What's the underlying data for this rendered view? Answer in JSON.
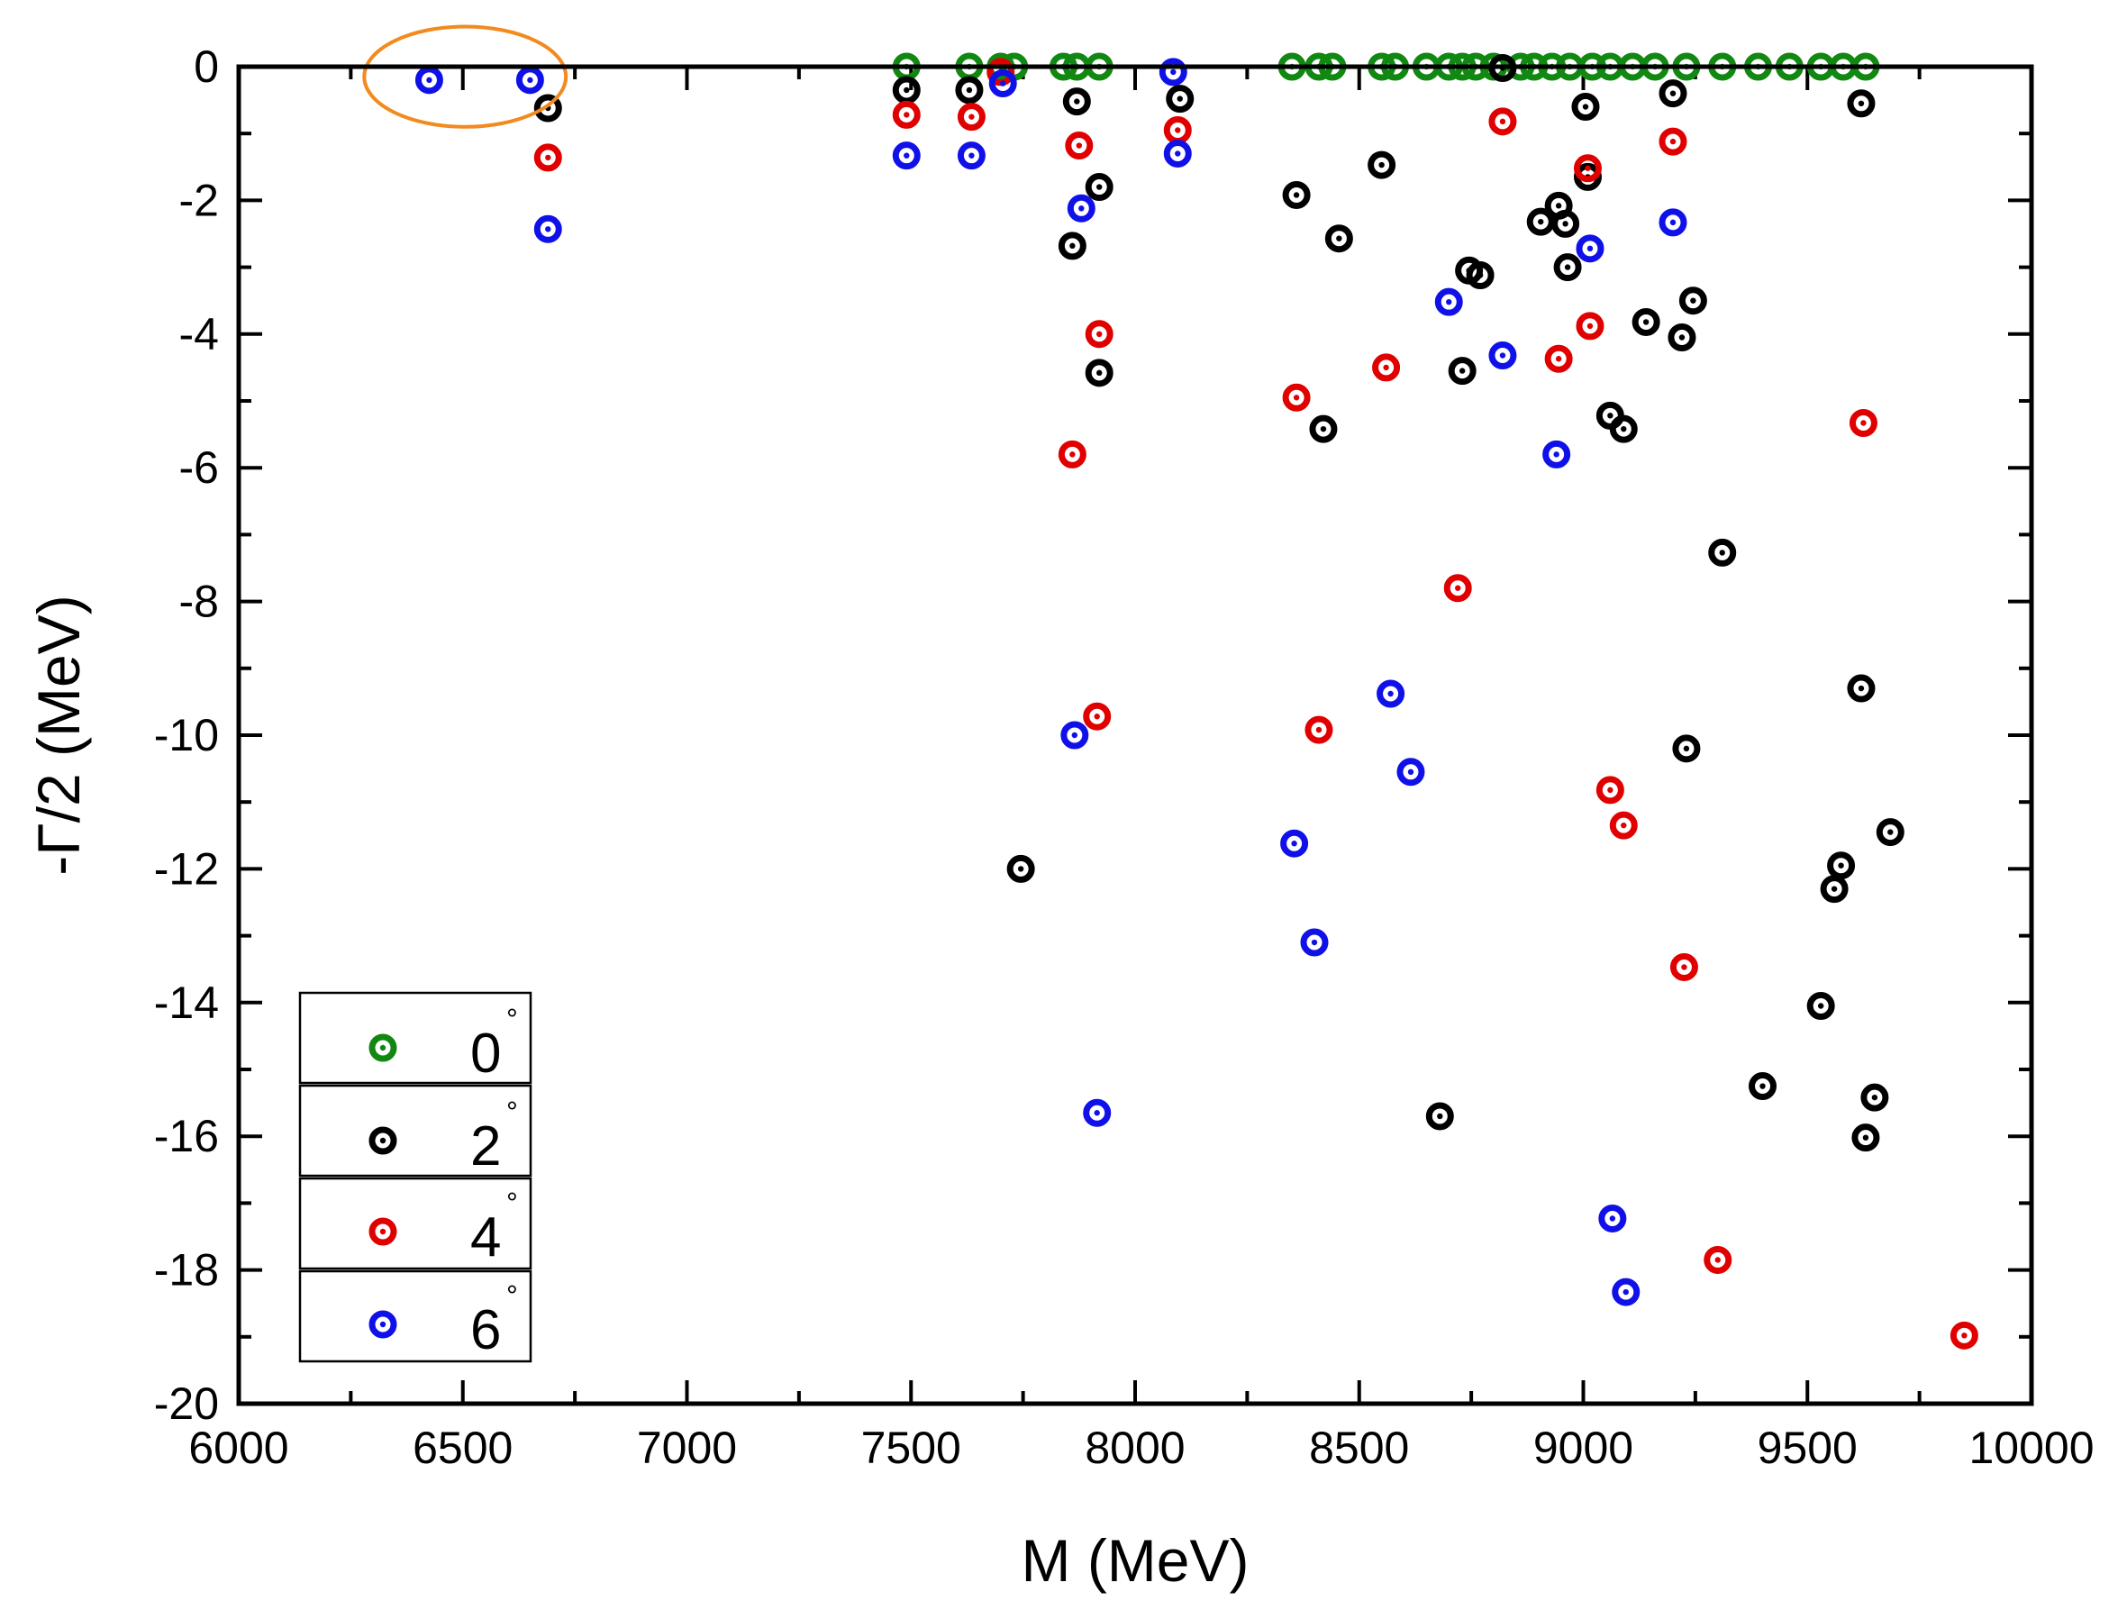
{
  "chart_data": {
    "type": "scatter",
    "title": "",
    "xlabel": "M (MeV)",
    "ylabel": "-Γ/2 (MeV)",
    "xlim": [
      6000,
      10000
    ],
    "ylim": [
      -20,
      0
    ],
    "x_ticks": [
      6000,
      6500,
      7000,
      7500,
      8000,
      8500,
      9000,
      9500,
      10000
    ],
    "y_ticks": [
      0,
      -2,
      -4,
      -6,
      -8,
      -10,
      -12,
      -14,
      -16,
      -18,
      -20
    ],
    "x_tick_labels": [
      "6000",
      "6500",
      "7000",
      "7500",
      "8000",
      "8500",
      "9000",
      "9500",
      "10000"
    ],
    "y_tick_labels": [
      "0",
      "-2",
      "-4",
      "-6",
      "-8",
      "-10",
      "-12",
      "-14",
      "-16",
      "-18",
      "-20"
    ],
    "legend_position": "bottom-left",
    "annotation": {
      "shape": "ellipse",
      "color": "#f28a1f",
      "center_x": 6505,
      "center_y": -0.15,
      "radius_x": 225,
      "radius_y": 0.75
    },
    "series": [
      {
        "name": "0",
        "unit": "°",
        "color": "#118811",
        "points": [
          [
            7490,
            0
          ],
          [
            7630,
            0
          ],
          [
            7700,
            0
          ],
          [
            7730,
            0
          ],
          [
            7840,
            0
          ],
          [
            7870,
            0
          ],
          [
            7920,
            0
          ],
          [
            8350,
            0
          ],
          [
            8410,
            0
          ],
          [
            8440,
            0
          ],
          [
            8550,
            0
          ],
          [
            8580,
            0
          ],
          [
            8650,
            0
          ],
          [
            8700,
            0
          ],
          [
            8730,
            0
          ],
          [
            8760,
            0
          ],
          [
            8800,
            0
          ],
          [
            8860,
            0
          ],
          [
            8890,
            0
          ],
          [
            8930,
            0
          ],
          [
            8970,
            0
          ],
          [
            9020,
            0
          ],
          [
            9060,
            0
          ],
          [
            9110,
            0
          ],
          [
            9160,
            0
          ],
          [
            9230,
            0
          ],
          [
            9310,
            0
          ],
          [
            9390,
            0
          ],
          [
            9460,
            0
          ],
          [
            9530,
            0
          ],
          [
            9580,
            0
          ],
          [
            9630,
            0
          ]
        ]
      },
      {
        "name": "2",
        "unit": "°",
        "color": "#000000",
        "points": [
          [
            6690,
            -0.62
          ],
          [
            7490,
            -0.35
          ],
          [
            7630,
            -0.35
          ],
          [
            7870,
            -0.52
          ],
          [
            7920,
            -1.8
          ],
          [
            7860,
            -2.68
          ],
          [
            7920,
            -4.58
          ],
          [
            8100,
            -0.48
          ],
          [
            7745,
            -12.0
          ],
          [
            8360,
            -1.92
          ],
          [
            8420,
            -5.42
          ],
          [
            8455,
            -2.57
          ],
          [
            8550,
            -1.47
          ],
          [
            8745,
            -3.05
          ],
          [
            8770,
            -3.12
          ],
          [
            8730,
            -4.55
          ],
          [
            8680,
            -15.7
          ],
          [
            8820,
            -0.02
          ],
          [
            8905,
            -2.32
          ],
          [
            8945,
            -2.08
          ],
          [
            8960,
            -2.35
          ],
          [
            8965,
            -3.0
          ],
          [
            9005,
            -0.6
          ],
          [
            9010,
            -1.65
          ],
          [
            9060,
            -5.22
          ],
          [
            9090,
            -5.42
          ],
          [
            9140,
            -3.82
          ],
          [
            9200,
            -0.4
          ],
          [
            9220,
            -4.05
          ],
          [
            9230,
            -10.2
          ],
          [
            9245,
            -3.5
          ],
          [
            9310,
            -7.27
          ],
          [
            9400,
            -15.25
          ],
          [
            9530,
            -14.05
          ],
          [
            9560,
            -12.3
          ],
          [
            9575,
            -11.95
          ],
          [
            9620,
            -0.55
          ],
          [
            9620,
            -9.3
          ],
          [
            9630,
            -16.02
          ],
          [
            9650,
            -15.42
          ],
          [
            9685,
            -11.45
          ]
        ]
      },
      {
        "name": "4",
        "unit": "°",
        "color": "#e00000",
        "points": [
          [
            6690,
            -1.36
          ],
          [
            7490,
            -0.72
          ],
          [
            7635,
            -0.75
          ],
          [
            7700,
            -0.08
          ],
          [
            7875,
            -1.18
          ],
          [
            7860,
            -5.8
          ],
          [
            7920,
            -4.0
          ],
          [
            7915,
            -9.72
          ],
          [
            8095,
            -0.95
          ],
          [
            8360,
            -4.95
          ],
          [
            8410,
            -9.92
          ],
          [
            8560,
            -4.5
          ],
          [
            8720,
            -7.8
          ],
          [
            8820,
            -0.82
          ],
          [
            8945,
            -4.37
          ],
          [
            9010,
            -1.52
          ],
          [
            9015,
            -3.88
          ],
          [
            9060,
            -10.82
          ],
          [
            9090,
            -11.35
          ],
          [
            9200,
            -1.12
          ],
          [
            9225,
            -13.47
          ],
          [
            9300,
            -17.85
          ],
          [
            9625,
            -5.33
          ],
          [
            9850,
            -18.98
          ]
        ]
      },
      {
        "name": "6",
        "unit": "°",
        "color": "#1010e8",
        "points": [
          [
            6425,
            -0.2
          ],
          [
            6650,
            -0.2
          ],
          [
            6690,
            -2.43
          ],
          [
            7490,
            -1.33
          ],
          [
            7635,
            -1.33
          ],
          [
            7705,
            -0.25
          ],
          [
            7865,
            -10.0
          ],
          [
            7880,
            -2.12
          ],
          [
            7915,
            -15.65
          ],
          [
            8085,
            -0.08
          ],
          [
            8095,
            -1.3
          ],
          [
            8355,
            -11.62
          ],
          [
            8400,
            -13.1
          ],
          [
            8570,
            -9.38
          ],
          [
            8615,
            -10.55
          ],
          [
            8700,
            -3.52
          ],
          [
            8820,
            -4.32
          ],
          [
            8940,
            -5.8
          ],
          [
            9015,
            -2.72
          ],
          [
            9065,
            -17.23
          ],
          [
            9095,
            -18.33
          ],
          [
            9200,
            -2.33
          ]
        ]
      }
    ]
  }
}
